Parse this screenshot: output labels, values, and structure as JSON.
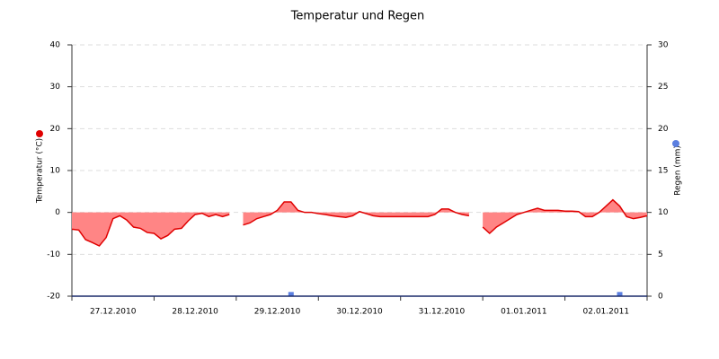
{
  "chart_data": {
    "type": "area",
    "title": "Temperatur und Regen",
    "x_labels": [
      "27.12.2010",
      "28.12.2010",
      "29.12.2010",
      "30.12.2010",
      "31.12.2010",
      "01.01.2011",
      "02.01.2011"
    ],
    "ylabel": "Temperatur (°C)",
    "y2label": "Regen (mm)",
    "ylim": [
      -20,
      40
    ],
    "yticks": [
      -20,
      -10,
      0,
      10,
      20,
      30,
      40
    ],
    "y2lim": [
      0,
      30
    ],
    "y2ticks": [
      0,
      5,
      10,
      15,
      20,
      25,
      30
    ],
    "grid": true,
    "series": [
      {
        "color": "#e00000",
        "fill": "#ff8585",
        "values": [
          -4,
          -4.2,
          -6.5,
          -7.2,
          -8,
          -6,
          -1.5,
          -0.8,
          -1.8,
          -3.5,
          -3.8,
          -4.8,
          -5,
          -6.3,
          -5.5,
          -4,
          -3.8,
          -2,
          -0.5,
          -0.2,
          -1,
          -0.5,
          -1,
          -0.5,
          null,
          -3,
          -2.5,
          -1.5,
          -1,
          -0.5,
          0.5,
          2.5,
          2.5,
          0.5,
          0,
          0,
          -0.3,
          -0.5,
          -0.8,
          -1,
          -1.2,
          -0.8,
          0.2,
          -0.3,
          -0.8,
          -1,
          -1,
          -1,
          -1,
          -1,
          -1,
          -1,
          -1,
          -0.5,
          0.8,
          0.8,
          0,
          -0.5,
          -0.8,
          null,
          -3.5,
          -5,
          -3.5,
          -2.5,
          -1.5,
          -0.5,
          0,
          0.5,
          1,
          0.5,
          0.5,
          0.5,
          0.3,
          0.3,
          0.2,
          -1,
          -1,
          0,
          1.5,
          3,
          1.5,
          -1,
          -1.5,
          -1.2,
          -0.8
        ]
      },
      {
        "type": "bar",
        "axis": "y2",
        "color": "#5b7fe0",
        "values": [
          0,
          0,
          0,
          0,
          0,
          0,
          0,
          0,
          0,
          0,
          0,
          0,
          0,
          0,
          0,
          0,
          0,
          0,
          0,
          0,
          0,
          0,
          0,
          0,
          0,
          0,
          0,
          0,
          0,
          0,
          0,
          0,
          0.5,
          0,
          0,
          0,
          0,
          0,
          0,
          0,
          0,
          0,
          0,
          0,
          0,
          0,
          0,
          0,
          0,
          0,
          0,
          0,
          0,
          0,
          0,
          0,
          0,
          0,
          0,
          0,
          0,
          0,
          0,
          0,
          0,
          0,
          0,
          0,
          0,
          0,
          0,
          0,
          0,
          0,
          0,
          0,
          0,
          0,
          0,
          0,
          0.5,
          0,
          0,
          0,
          0
        ]
      }
    ]
  }
}
